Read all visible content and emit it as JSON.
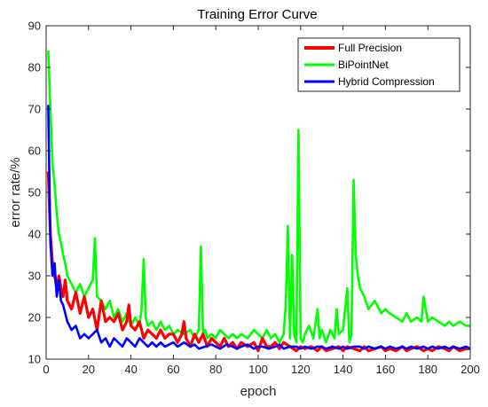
{
  "chart_data": {
    "type": "line",
    "title": "Training Error Curve",
    "xlabel": "epoch",
    "ylabel": "error rate/%",
    "xlim": [
      0,
      200
    ],
    "ylim": [
      10,
      90
    ],
    "xticks": [
      0,
      20,
      40,
      60,
      80,
      100,
      120,
      140,
      160,
      180,
      200
    ],
    "yticks": [
      10,
      20,
      30,
      40,
      50,
      60,
      70,
      80,
      90
    ],
    "grid": false,
    "legend_position": "top-right",
    "series": [
      {
        "name": "Full Precision",
        "color": "#ff0000",
        "x": [
          1,
          2,
          3,
          4,
          5,
          6,
          7,
          8,
          9,
          10,
          12,
          14,
          16,
          18,
          20,
          22,
          24,
          26,
          28,
          30,
          32,
          34,
          36,
          38,
          39,
          40,
          42,
          44,
          46,
          48,
          50,
          52,
          54,
          56,
          58,
          60,
          62,
          64,
          65,
          66,
          68,
          70,
          72,
          74,
          76,
          78,
          80,
          82,
          84,
          86,
          88,
          90,
          92,
          95,
          98,
          100,
          102,
          104,
          106,
          108,
          110,
          112,
          115,
          118,
          120,
          122,
          125,
          128,
          130,
          132,
          135,
          138,
          140,
          142,
          145,
          148,
          150,
          152,
          155,
          158,
          160,
          162,
          165,
          168,
          170,
          172,
          175,
          178,
          180,
          182,
          185,
          188,
          190,
          192,
          195,
          198,
          200
        ],
        "y": [
          55,
          40,
          33,
          30,
          27,
          30,
          27,
          25,
          29,
          24,
          22,
          26,
          21,
          25,
          20,
          22,
          17,
          24,
          19,
          20,
          19,
          21,
          17,
          19,
          23,
          18,
          17,
          19,
          15,
          17,
          16,
          15,
          17,
          15,
          16,
          16,
          14,
          16,
          19,
          15,
          13,
          16,
          14,
          16,
          13,
          15,
          14,
          13,
          15,
          13,
          14,
          12.5,
          14,
          13,
          14,
          12,
          15,
          13,
          13,
          14,
          12.5,
          14,
          13,
          12,
          13,
          12.5,
          13,
          12,
          13,
          12,
          12.5,
          13,
          12,
          13,
          12.5,
          12,
          13,
          12,
          12.5,
          13,
          12,
          12.5,
          12,
          13,
          12,
          12.5,
          13,
          12,
          12.5,
          12,
          13,
          12.5,
          12,
          13,
          12,
          12.5,
          12.5
        ]
      },
      {
        "name": "BiPointNet",
        "color": "#00ff00",
        "x": [
          1,
          2,
          3,
          4,
          5,
          6,
          7,
          8,
          9,
          10,
          12,
          14,
          16,
          18,
          20,
          22,
          23,
          24,
          26,
          28,
          30,
          32,
          34,
          36,
          38,
          40,
          42,
          44,
          45,
          46,
          47,
          48,
          50,
          52,
          54,
          56,
          58,
          60,
          62,
          65,
          68,
          70,
          72,
          73,
          74,
          75,
          76,
          78,
          80,
          82,
          84,
          86,
          88,
          90,
          92,
          95,
          98,
          100,
          102,
          104,
          106,
          108,
          110,
          112,
          113,
          114,
          115,
          116,
          117,
          118,
          119,
          120,
          121,
          122,
          124,
          126,
          128,
          129,
          130,
          132,
          134,
          136,
          137,
          138,
          140,
          142,
          143,
          144,
          145,
          146,
          147,
          148,
          150,
          152,
          155,
          158,
          160,
          162,
          165,
          168,
          170,
          172,
          175,
          177,
          178,
          180,
          182,
          185,
          188,
          190,
          192,
          195,
          198,
          200
        ],
        "y": [
          84,
          70,
          57,
          52,
          45,
          40,
          38,
          35,
          33,
          30,
          28,
          26,
          28,
          25,
          27,
          29,
          39,
          25,
          24,
          22,
          24,
          20,
          22,
          19,
          21,
          18,
          20,
          18,
          22,
          34,
          20,
          18,
          19,
          17,
          19,
          17,
          18,
          16,
          17,
          16,
          17,
          15,
          17,
          37,
          16,
          17,
          15,
          16,
          15,
          17,
          16,
          15,
          16,
          15,
          16,
          15,
          17,
          16,
          15,
          17,
          15,
          16,
          14,
          16,
          23,
          42,
          15,
          35,
          16,
          14,
          65,
          15,
          14,
          16,
          18,
          15,
          22,
          15,
          17,
          14,
          17,
          15,
          22,
          16,
          17,
          27,
          14,
          16,
          53,
          35,
          30,
          27,
          25,
          22,
          24,
          21,
          22,
          21,
          20,
          19,
          21,
          19,
          20,
          19,
          25,
          19,
          20,
          19,
          18,
          19,
          18,
          19,
          18,
          18
        ]
      },
      {
        "name": "Hybrid Compression",
        "color": "#0000ff",
        "x": [
          1,
          2,
          3,
          4,
          5,
          6,
          7,
          8,
          9,
          10,
          12,
          14,
          16,
          18,
          20,
          22,
          24,
          26,
          28,
          30,
          32,
          34,
          36,
          38,
          40,
          42,
          44,
          46,
          48,
          50,
          52,
          54,
          56,
          58,
          60,
          62,
          65,
          68,
          70,
          72,
          75,
          78,
          80,
          82,
          85,
          88,
          90,
          92,
          95,
          98,
          100,
          102,
          105,
          108,
          110,
          112,
          115,
          118,
          120,
          122,
          125,
          128,
          130,
          132,
          135,
          138,
          140,
          142,
          145,
          148,
          150,
          152,
          155,
          158,
          160,
          162,
          165,
          168,
          170,
          172,
          175,
          178,
          180,
          182,
          185,
          188,
          190,
          192,
          195,
          198,
          200
        ],
        "y": [
          71,
          38,
          30,
          33,
          25,
          29,
          24,
          23,
          21,
          19,
          17,
          18,
          15,
          16,
          15,
          16,
          17,
          14,
          15,
          13,
          15,
          14,
          13,
          15,
          14,
          13,
          15,
          14,
          13,
          14,
          13,
          14,
          13,
          13.5,
          14,
          13,
          14,
          13,
          13.5,
          12.5,
          13,
          13.5,
          13,
          12.5,
          13.5,
          13,
          12.5,
          13,
          13.5,
          12.5,
          13,
          13,
          12.5,
          13,
          13.5,
          12.5,
          13,
          13,
          12.5,
          13,
          12.5,
          13,
          13,
          12.5,
          13,
          12.5,
          13,
          12.5,
          13,
          13,
          12.5,
          13,
          12.5,
          13,
          12.5,
          13,
          12.5,
          13,
          12.5,
          13,
          12.5,
          13,
          12.5,
          13,
          12.5,
          13,
          12.5,
          13,
          12.5,
          13,
          12.5
        ]
      }
    ]
  }
}
